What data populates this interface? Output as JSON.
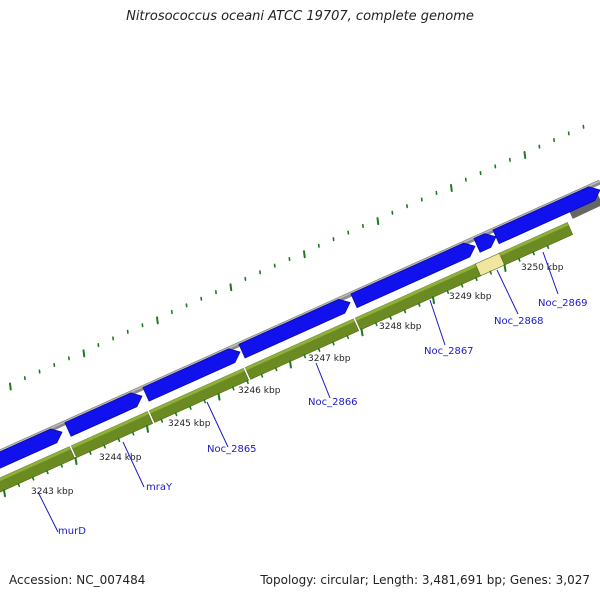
{
  "title": "Nitrosococcus oceani ATCC 19707, complete genome",
  "footer": {
    "accession": "Accession: NC_007484",
    "topology": "Topology: circular; Length: 3,481,691 bp; Genes: 3,027"
  },
  "colors": {
    "forward_gene": "#1111ee",
    "reverse_gene": "#6b8a22",
    "backbone": "#888888",
    "highlight_gene": "#f0e6a0",
    "tick": "#1d7a1d",
    "label": "#1a1acc"
  },
  "scale_labels": [
    "3243 kbp",
    "3244 kbp",
    "3245 kbp",
    "3246 kbp",
    "3247 kbp",
    "3248 kbp",
    "3249 kbp",
    "3250 kbp"
  ],
  "genes": [
    {
      "name": "murD"
    },
    {
      "name": "mraY"
    },
    {
      "name": "Noc_2865"
    },
    {
      "name": "Noc_2866"
    },
    {
      "name": "Noc_2867"
    },
    {
      "name": "Noc_2868"
    },
    {
      "name": "Noc_2869"
    }
  ]
}
